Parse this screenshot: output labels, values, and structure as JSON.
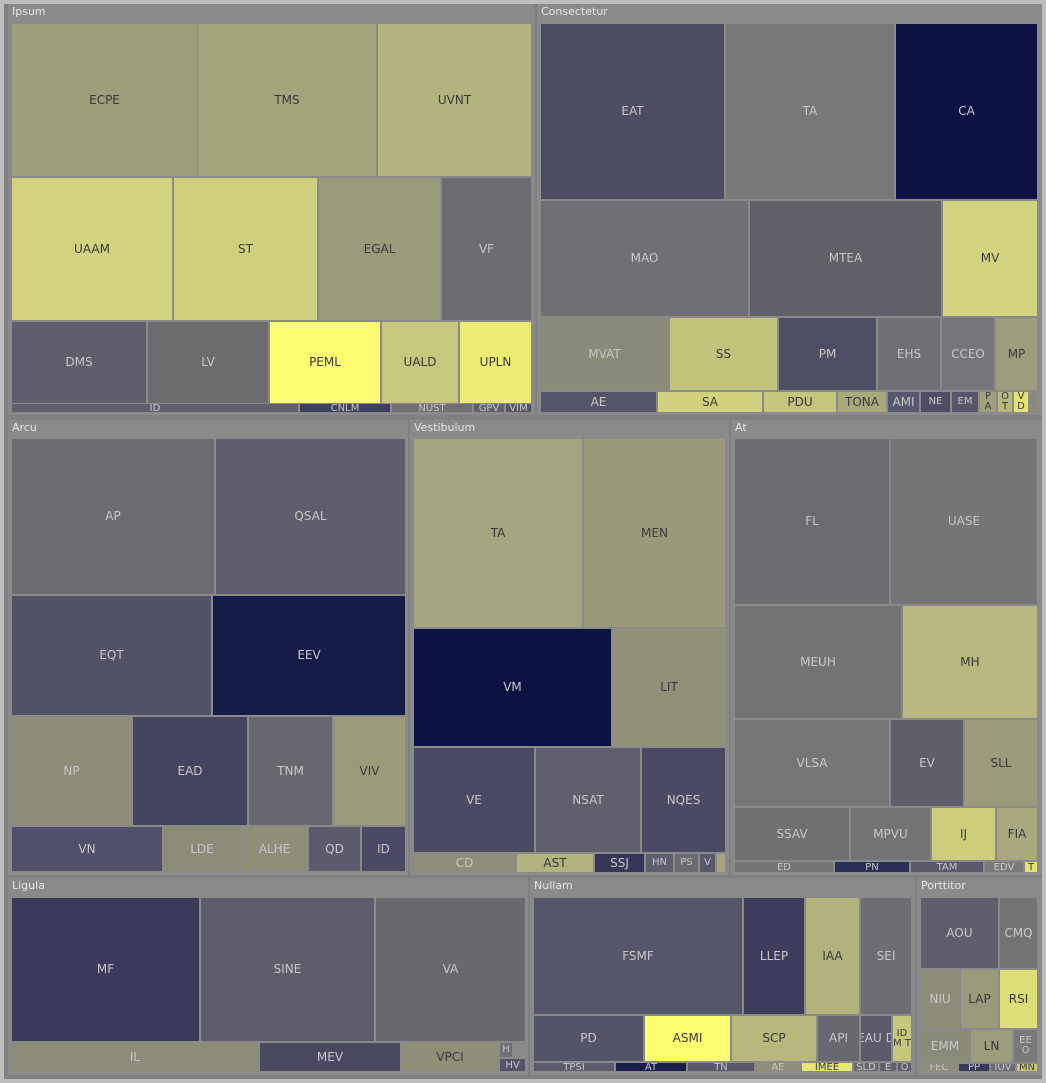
{
  "chart_data": {
    "type": "treemap",
    "groups": [
      {
        "name": "Ipsum",
        "items": [
          {
            "label": "ECPE",
            "color": "#9e9e7a"
          },
          {
            "label": "TMS",
            "color": "#a3a37c"
          },
          {
            "label": "UVNT",
            "color": "#b4b47f"
          },
          {
            "label": "UAAM",
            "color": "#d2d27f"
          },
          {
            "label": "ST",
            "color": "#cfcf7c"
          },
          {
            "label": "EGAL",
            "color": "#9a9a7c"
          },
          {
            "label": "VF",
            "color": "#6c6c72"
          },
          {
            "label": "DMS",
            "color": "#5e5e6c"
          },
          {
            "label": "LV",
            "color": "#6c6c6e"
          },
          {
            "label": "PEML",
            "color": "#fcfc71"
          },
          {
            "label": "UALD",
            "color": "#c7c77d"
          },
          {
            "label": "UPLN",
            "color": "#ecec72"
          },
          {
            "label": "ID",
            "color": "#5f5f6e"
          },
          {
            "label": "CNLM",
            "color": "#3e3e5e"
          },
          {
            "label": "NUST",
            "color": "#707074"
          },
          {
            "label": "GPV",
            "color": "#606070"
          },
          {
            "label": "VIM",
            "color": "#55556a"
          }
        ]
      },
      {
        "name": "Consectetur",
        "items": [
          {
            "label": "EAT",
            "color": "#4c4c63"
          },
          {
            "label": "TA",
            "color": "#787878"
          },
          {
            "label": "CA",
            "color": "#0c1242"
          },
          {
            "label": "MAO",
            "color": "#707074"
          },
          {
            "label": "MTEA",
            "color": "#606069"
          },
          {
            "label": "MV",
            "color": "#d3d37e"
          },
          {
            "label": "MVAT",
            "color": "#8a8a78"
          },
          {
            "label": "SS",
            "color": "#c3c37b"
          },
          {
            "label": "PM",
            "color": "#4d4d63"
          },
          {
            "label": "EHS",
            "color": "#707074"
          },
          {
            "label": "CCEO",
            "color": "#75757a"
          },
          {
            "label": "MP",
            "color": "#9e9e7e"
          },
          {
            "label": "AE",
            "color": "#55556a"
          },
          {
            "label": "SA",
            "color": "#d2d27e"
          },
          {
            "label": "PDU",
            "color": "#c5c57b"
          },
          {
            "label": "TONA",
            "color": "#a9a97c"
          },
          {
            "label": "AMI",
            "color": "#575770"
          },
          {
            "label": "NE",
            "color": "#4d4d66"
          },
          {
            "label": "EM",
            "color": "#56566b"
          },
          {
            "label": "P A",
            "color": "#a0a07c"
          },
          {
            "label": "O T",
            "color": "#b8b87c"
          },
          {
            "label": "V D",
            "color": "#e3e372"
          },
          {
            "label": "",
            "color": "#8a8a7a"
          }
        ]
      },
      {
        "name": "Arcu",
        "items": [
          {
            "label": "AP",
            "color": "#6d6d71"
          },
          {
            "label": "QSAL",
            "color": "#5d5d6c"
          },
          {
            "label": "EQT",
            "color": "#525266"
          },
          {
            "label": "EEV",
            "color": "#151c48"
          },
          {
            "label": "NP",
            "color": "#8c8c78"
          },
          {
            "label": "EAD",
            "color": "#444460"
          },
          {
            "label": "TNM",
            "color": "#67676f"
          },
          {
            "label": "VIV",
            "color": "#9b9b7b"
          },
          {
            "label": "VN",
            "color": "#50506a"
          },
          {
            "label": "LDE",
            "color": "#8b8b77"
          },
          {
            "label": "ALHE",
            "color": "#8e8e79"
          },
          {
            "label": "QD",
            "color": "#5b5b6c"
          },
          {
            "label": "ID",
            "color": "#4a4a64"
          }
        ]
      },
      {
        "name": "Vestibulum",
        "items": [
          {
            "label": "TA",
            "color": "#a4a47e"
          },
          {
            "label": "MEN",
            "color": "#9a9a7b"
          },
          {
            "label": "VM",
            "color": "#0c1244"
          },
          {
            "label": "LIT",
            "color": "#919178"
          },
          {
            "label": "VE",
            "color": "#4a4a62"
          },
          {
            "label": "NSAT",
            "color": "#5f5f6d"
          },
          {
            "label": "NQES",
            "color": "#4a4a62"
          },
          {
            "label": "CD",
            "color": "#8d8d78"
          },
          {
            "label": "AST",
            "color": "#b2b27d"
          },
          {
            "label": "SSJ",
            "color": "#363656"
          },
          {
            "label": "HN",
            "color": "#5e5e6e"
          },
          {
            "label": "PS",
            "color": "#6a6a70"
          },
          {
            "label": "V",
            "color": "#58586b"
          },
          {
            "label": "",
            "color": "#a6a67c"
          }
        ]
      },
      {
        "name": "At",
        "items": [
          {
            "label": "FL",
            "color": "#6b6b70"
          },
          {
            "label": "UASE",
            "color": "#757575"
          },
          {
            "label": "MEUH",
            "color": "#737374"
          },
          {
            "label": "MH",
            "color": "#b8b87e"
          },
          {
            "label": "VLSA",
            "color": "#767677"
          },
          {
            "label": "EV",
            "color": "#5f5f6c"
          },
          {
            "label": "SLL",
            "color": "#9b9b7b"
          },
          {
            "label": "SSAV",
            "color": "#707073"
          },
          {
            "label": "MPVU",
            "color": "#737374"
          },
          {
            "label": "IJ",
            "color": "#cdcd7b"
          },
          {
            "label": "FIA",
            "color": "#a9a97d"
          },
          {
            "label": "ED",
            "color": "#757576"
          },
          {
            "label": "PN",
            "color": "#2a2f58"
          },
          {
            "label": "TAM",
            "color": "#59596b"
          },
          {
            "label": "EDV",
            "color": "#7a7a77"
          },
          {
            "label": "T",
            "color": "#e3e372"
          }
        ]
      },
      {
        "name": "Ligula",
        "items": [
          {
            "label": "MF",
            "color": "#3b3b59"
          },
          {
            "label": "SINE",
            "color": "#5d5d6b"
          },
          {
            "label": "VA",
            "color": "#68686f"
          },
          {
            "label": "IL",
            "color": "#8b8b78"
          },
          {
            "label": "MEV",
            "color": "#48485f"
          },
          {
            "label": "VPCI",
            "color": "#8f8f79"
          },
          {
            "label": "H",
            "color": "#6f6f73"
          },
          {
            "label": "HV",
            "color": "#53536a"
          }
        ]
      },
      {
        "name": "Nullam",
        "items": [
          {
            "label": "FSMF",
            "color": "#56566a"
          },
          {
            "label": "LLEP",
            "color": "#3e3e5c"
          },
          {
            "label": "IAA",
            "color": "#b2b27d"
          },
          {
            "label": "SEI",
            "color": "#6e6e72"
          },
          {
            "label": "PD",
            "color": "#545468"
          },
          {
            "label": "ASMI",
            "color": "#fcfc71"
          },
          {
            "label": "SCP",
            "color": "#b8b87c"
          },
          {
            "label": "API",
            "color": "#68686f"
          },
          {
            "label": "EAU D",
            "color": "#5a5a6c"
          },
          {
            "label": "ID M T",
            "color": "#c6c67c"
          },
          {
            "label": "TPSI",
            "color": "#5c5c6c"
          },
          {
            "label": "AT",
            "color": "#181f4a"
          },
          {
            "label": "TN",
            "color": "#59596b"
          },
          {
            "label": "AE",
            "color": "#8e8e7a"
          },
          {
            "label": "IMEE",
            "color": "#e6e675"
          },
          {
            "label": "SLD",
            "color": "#68686f"
          },
          {
            "label": "E",
            "color": "#62626d"
          },
          {
            "label": "O",
            "color": "#5d5d6c"
          }
        ]
      },
      {
        "name": "Porttitor",
        "items": [
          {
            "label": "AOU",
            "color": "#5e5e6c"
          },
          {
            "label": "CMQ",
            "color": "#737374"
          },
          {
            "label": "NIU",
            "color": "#8c8c78"
          },
          {
            "label": "LAP",
            "color": "#9a9a7c"
          },
          {
            "label": "RSI",
            "color": "#dede76"
          },
          {
            "label": "EMM",
            "color": "#8a8a78"
          },
          {
            "label": "LN",
            "color": "#9d9d7c"
          },
          {
            "label": "EE O",
            "color": "#79797a"
          },
          {
            "label": "FEC",
            "color": "#8d8d7a"
          },
          {
            "label": "PP",
            "color": "#3a3a5b"
          },
          {
            "label": "IUV",
            "color": "#6b6b70"
          },
          {
            "label": "MN",
            "color": "#c7c77c"
          }
        ]
      }
    ]
  }
}
